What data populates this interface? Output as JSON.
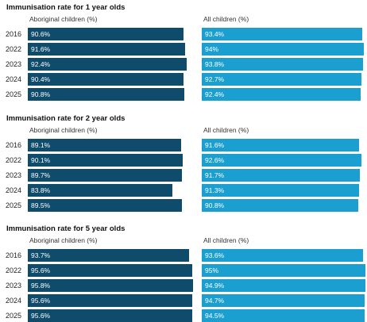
{
  "chart_data": [
    {
      "type": "bar",
      "title": "Immunisation rate for 1 year olds",
      "categories": [
        "2016",
        "2022",
        "2023",
        "2024",
        "2025"
      ],
      "series": [
        {
          "name": "Aboriginal children (%)",
          "values": [
            90.6,
            91.6,
            92.4,
            90.4,
            90.8
          ],
          "labels": [
            "90.6%",
            "91.6%",
            "92.4%",
            "90.4%",
            "90.8%"
          ]
        },
        {
          "name": "All children (%)",
          "values": [
            93.4,
            94,
            93.8,
            92.7,
            92.4
          ],
          "labels": [
            "93.4%",
            "94%",
            "93.8%",
            "92.7%",
            "92.4%"
          ]
        }
      ]
    },
    {
      "type": "bar",
      "title": "Immunisation rate for 2 year olds",
      "categories": [
        "2016",
        "2022",
        "2023",
        "2024",
        "2025"
      ],
      "series": [
        {
          "name": "Aboriginal children (%)",
          "values": [
            89.1,
            90.1,
            89.7,
            83.8,
            89.5
          ],
          "labels": [
            "89.1%",
            "90.1%",
            "89.7%",
            "83.8%",
            "89.5%"
          ]
        },
        {
          "name": "All children (%)",
          "values": [
            91.6,
            92.6,
            91.7,
            91.3,
            90.8
          ],
          "labels": [
            "91.6%",
            "92.6%",
            "91.7%",
            "91.3%",
            "90.8%"
          ]
        }
      ]
    },
    {
      "type": "bar",
      "title": "Immunisation rate for 5 year olds",
      "categories": [
        "2016",
        "2022",
        "2023",
        "2024",
        "2025"
      ],
      "series": [
        {
          "name": "Aboriginal children (%)",
          "values": [
            93.7,
            95.6,
            95.8,
            95.6,
            95.6
          ],
          "labels": [
            "93.7%",
            "95.6%",
            "95.8%",
            "95.6%",
            "95.6%"
          ]
        },
        {
          "name": "All children (%)",
          "values": [
            93.6,
            95,
            94.9,
            94.7,
            94.5
          ],
          "labels": [
            "93.6%",
            "95%",
            "94.9%",
            "94.7%",
            "94.5%"
          ]
        }
      ]
    }
  ],
  "colors": {
    "aboriginal": "#0f4c6c",
    "all": "#1a9fd0"
  }
}
